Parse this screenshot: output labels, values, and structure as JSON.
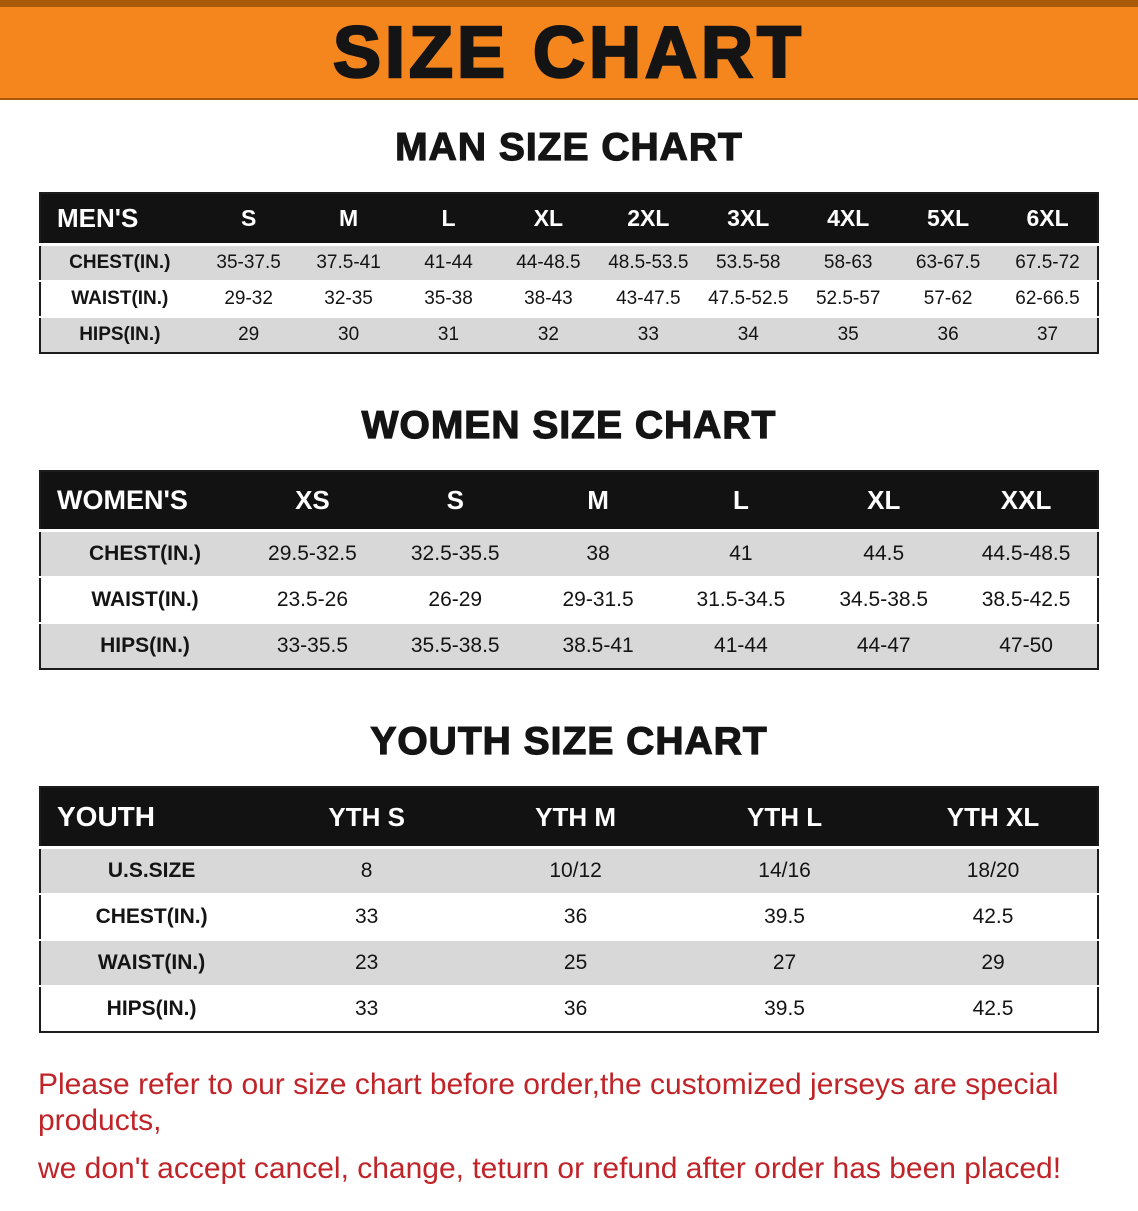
{
  "banner": {
    "title": "SIZE CHART"
  },
  "sections": [
    {
      "heading": "MAN SIZE CHART",
      "table": {
        "header": [
          "MEN'S",
          "S",
          "M",
          "L",
          "XL",
          "2XL",
          "3XL",
          "4XL",
          "5XL",
          "6XL"
        ],
        "rows": [
          [
            "CHEST(IN.)",
            "35-37.5",
            "37.5-41",
            "41-44",
            "44-48.5",
            "48.5-53.5",
            "53.5-58",
            "58-63",
            "63-67.5",
            "67.5-72"
          ],
          [
            "WAIST(IN.)",
            "29-32",
            "32-35",
            "35-38",
            "38-43",
            "43-47.5",
            "47.5-52.5",
            "52.5-57",
            "57-62",
            "62-66.5"
          ],
          [
            "HIPS(IN.)",
            "29",
            "30",
            "31",
            "32",
            "33",
            "34",
            "35",
            "36",
            "37"
          ]
        ]
      }
    },
    {
      "heading": "WOMEN SIZE CHART",
      "table": {
        "header": [
          "WOMEN'S",
          "XS",
          "S",
          "M",
          "L",
          "XL",
          "XXL"
        ],
        "rows": [
          [
            "CHEST(IN.)",
            "29.5-32.5",
            "32.5-35.5",
            "38",
            "41",
            "44.5",
            "44.5-48.5"
          ],
          [
            "WAIST(IN.)",
            "23.5-26",
            "26-29",
            "29-31.5",
            "31.5-34.5",
            "34.5-38.5",
            "38.5-42.5"
          ],
          [
            "HIPS(IN.)",
            "33-35.5",
            "35.5-38.5",
            "38.5-41",
            "41-44",
            "44-47",
            "47-50"
          ]
        ]
      }
    },
    {
      "heading": "YOUTH SIZE CHART",
      "table": {
        "header": [
          "YOUTH",
          "YTH S",
          "YTH M",
          "YTH L",
          "YTH XL"
        ],
        "rows": [
          [
            "U.S.SIZE",
            "8",
            "10/12",
            "14/16",
            "18/20"
          ],
          [
            "CHEST(IN.)",
            "33",
            "36",
            "39.5",
            "42.5"
          ],
          [
            "WAIST(IN.)",
            "23",
            "25",
            "27",
            "29"
          ],
          [
            "HIPS(IN.)",
            "33",
            "36",
            "39.5",
            "42.5"
          ]
        ]
      }
    }
  ],
  "footer": {
    "line1": "Please refer to our size chart before order,the customized jerseys are special products,",
    "line2": "we don't accept cancel, change, teturn or refund after order has been placed!"
  },
  "colors": {
    "banner_orange": "#f5861d",
    "banner_edge": "#a85a08",
    "table_header_bg": "#121212",
    "row_stripe": "#d8d8d8",
    "notice_red": "#c02328",
    "text_ink": "#141414"
  }
}
